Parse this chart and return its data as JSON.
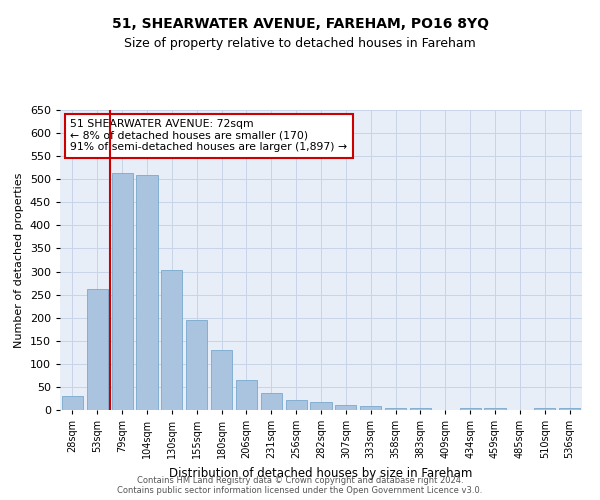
{
  "title": "51, SHEARWATER AVENUE, FAREHAM, PO16 8YQ",
  "subtitle": "Size of property relative to detached houses in Fareham",
  "xlabel": "Distribution of detached houses by size in Fareham",
  "ylabel": "Number of detached properties",
  "footer_line1": "Contains HM Land Registry data © Crown copyright and database right 2024.",
  "footer_line2": "Contains public sector information licensed under the Open Government Licence v3.0.",
  "categories": [
    "28sqm",
    "53sqm",
    "79sqm",
    "104sqm",
    "130sqm",
    "155sqm",
    "180sqm",
    "206sqm",
    "231sqm",
    "256sqm",
    "282sqm",
    "307sqm",
    "333sqm",
    "358sqm",
    "383sqm",
    "409sqm",
    "434sqm",
    "459sqm",
    "485sqm",
    "510sqm",
    "536sqm"
  ],
  "values": [
    30,
    263,
    513,
    510,
    303,
    195,
    130,
    65,
    37,
    22,
    17,
    10,
    8,
    5,
    5,
    0,
    5,
    5,
    0,
    5,
    5
  ],
  "bar_color": "#aac4df",
  "bar_edge_color": "#6a9fc8",
  "vline_x": 1.5,
  "vline_color": "#cc0000",
  "annotation_text": "51 SHEARWATER AVENUE: 72sqm\n← 8% of detached houses are smaller (170)\n91% of semi-detached houses are larger (1,897) →",
  "annotation_box_color": "#ffffff",
  "annotation_box_edge": "#cc0000",
  "ylim": [
    0,
    650
  ],
  "yticks": [
    0,
    50,
    100,
    150,
    200,
    250,
    300,
    350,
    400,
    450,
    500,
    550,
    600,
    650
  ],
  "grid_color": "#c8d4e8",
  "background_color": "#e8eef8",
  "title_fontsize": 10,
  "subtitle_fontsize": 9
}
